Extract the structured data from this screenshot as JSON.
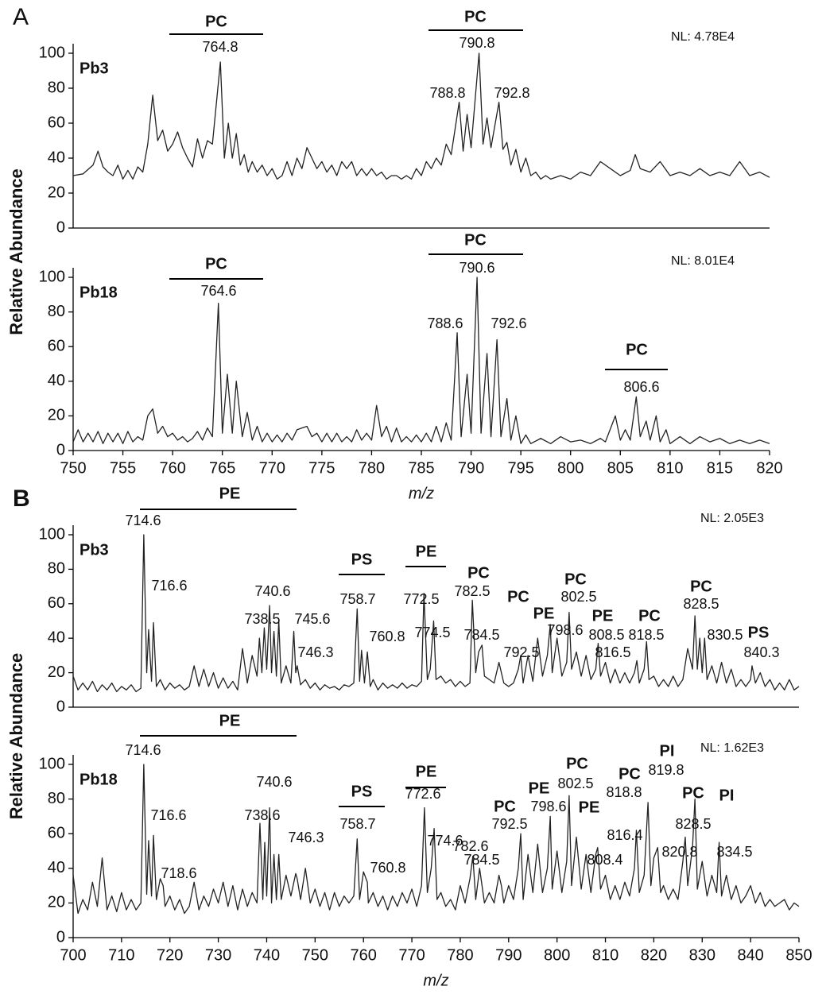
{
  "chart_data": [
    {
      "type": "line",
      "label": "A",
      "sample": "Pb3",
      "note": "NL: 4.78E4",
      "ylabel": "Relative Abundance",
      "color": "#222222",
      "xlim": [
        750,
        820
      ],
      "ylim": [
        0,
        100
      ],
      "yticks": [
        0,
        20,
        40,
        60,
        80,
        100
      ],
      "classes": [
        "PC",
        "PC"
      ],
      "peak_labels": [
        "764.8",
        "790.8",
        "788.8",
        "792.8"
      ],
      "x": [
        750,
        751,
        752,
        752.5,
        753,
        753.5,
        754,
        754.5,
        755,
        755.5,
        756,
        756.5,
        757,
        757.5,
        758,
        758.5,
        759,
        759.5,
        760,
        760.5,
        761,
        761.5,
        762,
        762.5,
        763,
        763.5,
        764,
        764.8,
        765.2,
        765.6,
        766,
        766.4,
        766.8,
        767.2,
        767.6,
        768,
        768.5,
        769,
        769.5,
        770,
        770.5,
        771,
        771.5,
        772,
        772.5,
        773,
        773.5,
        774,
        774.5,
        775,
        775.5,
        776,
        776.5,
        777,
        777.5,
        778,
        778.5,
        779,
        779.5,
        780,
        780.5,
        781,
        781.5,
        782,
        782.5,
        783,
        783.5,
        784,
        784.5,
        785,
        785.5,
        786,
        786.5,
        787,
        787.5,
        788,
        788.8,
        789.2,
        789.6,
        790,
        790.8,
        791.2,
        791.6,
        792,
        792.8,
        793.2,
        793.6,
        794,
        794.5,
        795,
        795.5,
        796,
        796.5,
        797,
        797.5,
        798,
        799,
        800,
        801,
        802,
        803,
        804,
        805,
        806,
        806.5,
        807,
        808,
        809,
        810,
        811,
        812,
        813,
        814,
        815,
        816,
        817,
        818,
        819,
        820
      ],
      "values": [
        30,
        31,
        36,
        44,
        35,
        32,
        30,
        36,
        28,
        33,
        28,
        35,
        32,
        48,
        76,
        50,
        56,
        44,
        48,
        55,
        46,
        40,
        35,
        51,
        40,
        50,
        48,
        95,
        40,
        60,
        40,
        54,
        36,
        42,
        32,
        38,
        32,
        36,
        30,
        34,
        28,
        30,
        38,
        30,
        40,
        34,
        46,
        40,
        34,
        38,
        32,
        36,
        30,
        38,
        34,
        38,
        30,
        34,
        30,
        34,
        30,
        32,
        28,
        30,
        30,
        28,
        30,
        28,
        34,
        30,
        38,
        34,
        40,
        36,
        48,
        42,
        72,
        44,
        65,
        46,
        100,
        48,
        63,
        46,
        72,
        45,
        49,
        36,
        45,
        32,
        40,
        30,
        32,
        28,
        30,
        28,
        30,
        28,
        32,
        30,
        38,
        34,
        30,
        33,
        42,
        34,
        32,
        38,
        30,
        32,
        30,
        34,
        30,
        32,
        30,
        38,
        30,
        32,
        29
      ]
    },
    {
      "type": "line",
      "sample": "Pb18",
      "note": "NL: 8.01E4",
      "xlabel": "m/z",
      "color": "#222222",
      "xlim": [
        750,
        820
      ],
      "ylim": [
        0,
        100
      ],
      "yticks": [
        0,
        20,
        40,
        60,
        80,
        100
      ],
      "xticks": [
        750,
        755,
        760,
        765,
        770,
        775,
        780,
        785,
        790,
        795,
        800,
        805,
        810,
        815,
        820
      ],
      "classes": [
        "PC",
        "PC",
        "PC"
      ],
      "peak_labels": [
        "764.6",
        "790.6",
        "788.6",
        "792.6",
        "806.6"
      ],
      "x": [
        750,
        750.5,
        751,
        751.5,
        752,
        752.5,
        753,
        753.5,
        754,
        754.5,
        755,
        755.5,
        756,
        756.5,
        757,
        757.5,
        758,
        758.5,
        759,
        759.5,
        760,
        760.5,
        761,
        761.5,
        762,
        762.5,
        763,
        763.5,
        764,
        764.6,
        765,
        765.5,
        766,
        766.4,
        767,
        767.5,
        768,
        768.5,
        769,
        769.5,
        770,
        770.5,
        771,
        771.5,
        772,
        772.5,
        773,
        773.5,
        774,
        774.5,
        775,
        775.5,
        776,
        776.5,
        777,
        777.5,
        778,
        778.5,
        779,
        779.5,
        780,
        780.5,
        781,
        781.5,
        782,
        782.5,
        783,
        783.5,
        784,
        784.5,
        785,
        785.5,
        786,
        786.5,
        787,
        787.5,
        788,
        788.6,
        789,
        789.6,
        790,
        790.6,
        791,
        791.6,
        792,
        792.6,
        793,
        793.6,
        794,
        794.5,
        795,
        795.5,
        796,
        797,
        798,
        799,
        800,
        801,
        802,
        803,
        803.5,
        804.5,
        805,
        805.5,
        806,
        806.6,
        807,
        807.6,
        808,
        808.6,
        809,
        809.6,
        810,
        811,
        812,
        813,
        814,
        815,
        816,
        817,
        818,
        819,
        820
      ],
      "values": [
        5,
        12,
        5,
        10,
        5,
        11,
        4,
        10,
        5,
        10,
        4,
        11,
        5,
        8,
        6,
        20,
        24,
        10,
        14,
        8,
        10,
        6,
        8,
        5,
        7,
        11,
        6,
        13,
        8,
        85,
        10,
        44,
        10,
        40,
        8,
        22,
        6,
        14,
        5,
        10,
        5,
        9,
        5,
        10,
        6,
        12,
        13,
        14,
        8,
        10,
        5,
        10,
        5,
        10,
        5,
        8,
        5,
        12,
        6,
        10,
        6,
        26,
        8,
        14,
        5,
        13,
        5,
        8,
        5,
        9,
        5,
        10,
        5,
        14,
        5,
        16,
        6,
        68,
        8,
        44,
        10,
        100,
        10,
        56,
        8,
        64,
        8,
        30,
        6,
        20,
        4,
        9,
        4,
        7,
        4,
        8,
        5,
        6,
        4,
        7,
        5,
        20,
        6,
        12,
        6,
        31,
        8,
        17,
        6,
        20,
        5,
        12,
        4,
        8,
        4,
        8,
        5,
        7,
        4,
        6,
        4,
        6,
        4
      ]
    },
    {
      "type": "line",
      "label": "B",
      "sample": "Pb3",
      "note": "NL: 2.05E3",
      "ylabel": "Relative Abundance",
      "color": "#222222",
      "xlim": [
        700,
        850
      ],
      "ylim": [
        0,
        100
      ],
      "yticks": [
        0,
        20,
        40,
        60,
        80,
        100
      ],
      "classes": [
        "PE",
        "PS",
        "PE",
        "PC",
        "PC",
        "PE",
        "PC",
        "PE",
        "PC",
        "PC",
        "PS"
      ],
      "peak_labels": [
        "714.6",
        "716.6",
        "738.5",
        "740.6",
        "745.6",
        "746.3",
        "758.7",
        "760.8",
        "772.5",
        "774.5",
        "782.5",
        "784.5",
        "792.5",
        "798.6",
        "802.5",
        "808.5",
        "816.5",
        "818.5",
        "828.5",
        "830.5",
        "840.3"
      ],
      "x": [
        700,
        701,
        702,
        703,
        704,
        705,
        706,
        707,
        708,
        709,
        710,
        711,
        712,
        713,
        714,
        714.6,
        715.2,
        715.6,
        716.2,
        716.6,
        717.2,
        718,
        719,
        720,
        721,
        722,
        723,
        724,
        725,
        726,
        727,
        728,
        729,
        730,
        731,
        732,
        733,
        734,
        735,
        736,
        737,
        738,
        738.5,
        739,
        739.5,
        740,
        740.6,
        741,
        741.5,
        742,
        742.5,
        743,
        744,
        745,
        745.6,
        746,
        746.3,
        747,
        748,
        749,
        750,
        751,
        752,
        753,
        754,
        755,
        756,
        757,
        758,
        758.7,
        759.2,
        759.6,
        760.2,
        760.8,
        761.4,
        762,
        763,
        764,
        765,
        766,
        767,
        768,
        769,
        770,
        771,
        772,
        772.5,
        773.2,
        773.8,
        774.5,
        775,
        776,
        777,
        778,
        779,
        780,
        781,
        782,
        782.5,
        783.2,
        783.8,
        784.5,
        785,
        786,
        787,
        788,
        789,
        790,
        791,
        792,
        792.5,
        793,
        794,
        795,
        796,
        797,
        798,
        798.6,
        799,
        800,
        801,
        802,
        802.5,
        803,
        804,
        805,
        806,
        807,
        808,
        808.5,
        809,
        810,
        811,
        812,
        813,
        814,
        815,
        816,
        816.5,
        817,
        818,
        818.5,
        819,
        820,
        821,
        822,
        823,
        824,
        825,
        826,
        827,
        828,
        828.5,
        829,
        829.5,
        830,
        830.5,
        831,
        832,
        833,
        834,
        835,
        836,
        837,
        838,
        839,
        840,
        840.3,
        841,
        842,
        843,
        844,
        845,
        846,
        847,
        848,
        849,
        850
      ],
      "values": [
        18,
        10,
        14,
        10,
        15,
        9,
        13,
        10,
        14,
        9,
        12,
        10,
        13,
        9,
        11,
        100,
        20,
        45,
        15,
        49,
        12,
        16,
        10,
        14,
        11,
        13,
        10,
        12,
        24,
        12,
        22,
        12,
        20,
        11,
        17,
        11,
        15,
        10,
        34,
        14,
        30,
        18,
        40,
        20,
        46,
        22,
        59,
        20,
        44,
        18,
        50,
        14,
        24,
        14,
        44,
        20,
        24,
        13,
        16,
        11,
        14,
        10,
        13,
        11,
        12,
        10,
        13,
        12,
        14,
        57,
        15,
        33,
        14,
        32,
        12,
        16,
        10,
        14,
        11,
        13,
        11,
        14,
        11,
        13,
        12,
        15,
        66,
        16,
        22,
        50,
        16,
        18,
        14,
        16,
        12,
        15,
        12,
        14,
        62,
        20,
        32,
        36,
        18,
        16,
        14,
        26,
        14,
        12,
        14,
        22,
        30,
        14,
        30,
        15,
        40,
        18,
        30,
        48,
        20,
        40,
        18,
        26,
        55,
        22,
        32,
        18,
        30,
        16,
        22,
        37,
        18,
        26,
        14,
        22,
        14,
        20,
        14,
        20,
        27,
        14,
        22,
        38,
        16,
        18,
        12,
        16,
        12,
        18,
        12,
        16,
        34,
        22,
        53,
        22,
        40,
        20,
        40,
        16,
        24,
        14,
        26,
        14,
        22,
        12,
        16,
        12,
        16,
        24,
        14,
        20,
        12,
        16,
        10,
        14,
        10,
        16,
        10,
        12
      ]
    },
    {
      "type": "line",
      "sample": "Pb18",
      "note": "NL: 1.62E3",
      "xlabel": "m/z",
      "color": "#222222",
      "xlim": [
        700,
        850
      ],
      "ylim": [
        0,
        100
      ],
      "yticks": [
        0,
        20,
        40,
        60,
        80,
        100
      ],
      "xticks": [
        700,
        710,
        720,
        730,
        740,
        750,
        760,
        770,
        780,
        790,
        800,
        810,
        820,
        830,
        840,
        850
      ],
      "classes": [
        "PE",
        "PS",
        "PE",
        "PC",
        "PE",
        "PC",
        "PE",
        "PC",
        "PI",
        "PC",
        "PI"
      ],
      "peak_labels": [
        "714.6",
        "716.6",
        "718.6",
        "738.6",
        "740.6",
        "746.3",
        "758.7",
        "760.8",
        "772.6",
        "774.6",
        "782.6",
        "784.5",
        "792.5",
        "798.6",
        "802.5",
        "808.4",
        "816.4",
        "818.8",
        "819.8",
        "820.8",
        "828.5",
        "834.5"
      ],
      "x": [
        700,
        701,
        702,
        703,
        704,
        705,
        706,
        707,
        708,
        709,
        710,
        711,
        712,
        713,
        714,
        714.6,
        715.2,
        715.6,
        716.2,
        716.6,
        717.2,
        718,
        718.6,
        719,
        720,
        721,
        722,
        723,
        724,
        725,
        726,
        727,
        728,
        729,
        730,
        731,
        732,
        733,
        734,
        735,
        736,
        737,
        738,
        738.6,
        739.2,
        739.6,
        740,
        740.6,
        741,
        741.5,
        742,
        742.5,
        743,
        744,
        745,
        746,
        746.3,
        747,
        748,
        749,
        750,
        751,
        752,
        753,
        754,
        755,
        756,
        757,
        758,
        758.7,
        759.2,
        760,
        760.8,
        761,
        762,
        763,
        764,
        765,
        766,
        767,
        768,
        769,
        770,
        771,
        772,
        772.6,
        773.2,
        774,
        774.6,
        775.2,
        776,
        777,
        778,
        779,
        780,
        781,
        782,
        782.6,
        783.2,
        784,
        784.5,
        785,
        786,
        787,
        788,
        788.5,
        789,
        790,
        791,
        792,
        792.5,
        793,
        794,
        795,
        796,
        797,
        798,
        798.6,
        799,
        800,
        801,
        802,
        802.5,
        803,
        804,
        805,
        806,
        807,
        808,
        808.4,
        809,
        810,
        811,
        812,
        813,
        814,
        815,
        816,
        816.4,
        817,
        818,
        818.8,
        819.4,
        820,
        820.8,
        821.4,
        822,
        823,
        824,
        825,
        826,
        826.5,
        827,
        828,
        828.5,
        829,
        830,
        831,
        832,
        833,
        833.5,
        834,
        835,
        836,
        837,
        838,
        839,
        840,
        841,
        842,
        843,
        844,
        845,
        846,
        847,
        848,
        849,
        850
      ],
      "values": [
        36,
        14,
        22,
        16,
        32,
        18,
        46,
        16,
        24,
        15,
        26,
        16,
        22,
        16,
        20,
        100,
        25,
        56,
        24,
        59,
        22,
        34,
        30,
        18,
        24,
        16,
        22,
        14,
        18,
        32,
        16,
        24,
        18,
        28,
        20,
        32,
        18,
        30,
        16,
        28,
        18,
        26,
        20,
        66,
        22,
        55,
        24,
        75,
        20,
        48,
        22,
        48,
        22,
        36,
        24,
        37,
        34,
        22,
        40,
        20,
        28,
        18,
        26,
        16,
        26,
        18,
        24,
        20,
        24,
        57,
        22,
        38,
        32,
        20,
        26,
        18,
        24,
        16,
        24,
        18,
        26,
        20,
        28,
        18,
        30,
        75,
        26,
        40,
        63,
        22,
        26,
        18,
        22,
        16,
        30,
        20,
        34,
        47,
        22,
        40,
        30,
        20,
        26,
        20,
        36,
        30,
        20,
        30,
        22,
        40,
        60,
        22,
        48,
        26,
        54,
        26,
        40,
        70,
        28,
        50,
        26,
        44,
        82,
        30,
        58,
        28,
        48,
        26,
        48,
        52,
        28,
        36,
        22,
        30,
        22,
        32,
        24,
        40,
        62,
        26,
        36,
        78,
        30,
        46,
        52,
        26,
        30,
        22,
        28,
        22,
        44,
        58,
        30,
        52,
        80,
        28,
        44,
        24,
        36,
        26,
        55,
        24,
        36,
        22,
        30,
        20,
        24,
        30,
        20,
        26,
        18,
        22,
        18,
        20,
        22,
        16,
        20,
        18
      ]
    }
  ]
}
